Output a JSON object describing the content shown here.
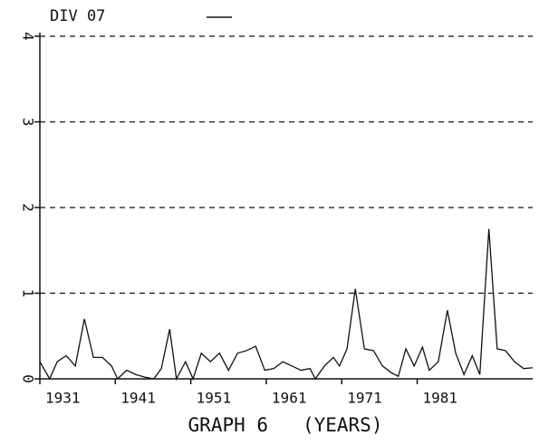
{
  "chart_data": {
    "type": "line",
    "title": "DIV 07",
    "xlabel": "GRAPH 6   (YEARS)",
    "series": [
      {
        "name": "DIV 07",
        "color": "#111111",
        "x": [
          1931.0,
          1932.3,
          1933.3,
          1934.5,
          1935.7,
          1936.9,
          1938.1,
          1939.3,
          1940.5,
          1941.3,
          1942.5,
          1943.7,
          1944.9,
          1946.1,
          1947.1,
          1948.2,
          1949.1,
          1950.3,
          1951.3,
          1952.4,
          1953.6,
          1954.8,
          1956.0,
          1957.2,
          1958.4,
          1959.6,
          1960.8,
          1962.0,
          1963.2,
          1964.4,
          1965.6,
          1966.8,
          1967.5,
          1968.7,
          1969.9,
          1970.7,
          1971.7,
          1972.8,
          1974.0,
          1975.2,
          1976.4,
          1977.6,
          1978.5,
          1979.5,
          1980.6,
          1981.7,
          1982.6,
          1983.8,
          1985.0,
          1986.1,
          1987.2,
          1988.3,
          1989.3,
          1990.5,
          1991.6,
          1992.7,
          1993.9,
          1995.1,
          1996.3
        ],
        "values": [
          0.2,
          0,
          0.2,
          0.27,
          0.15,
          0.7,
          0.25,
          0.25,
          0.15,
          0,
          0.1,
          0.05,
          0.02,
          0,
          0.12,
          0.58,
          0,
          0.2,
          0,
          0.3,
          0.2,
          0.3,
          0.1,
          0.3,
          0.33,
          0.38,
          0.1,
          0.12,
          0.2,
          0.15,
          0.1,
          0.12,
          0,
          0.15,
          0.25,
          0.15,
          0.35,
          1.05,
          0.35,
          0.33,
          0.15,
          0.07,
          0.03,
          0.35,
          0.15,
          0.37,
          0.1,
          0.2,
          0.8,
          0.3,
          0.05,
          0.27,
          0.05,
          1.75,
          0.35,
          0.33,
          0.2,
          0.12,
          0.13
        ]
      }
    ],
    "xlim": [
      1931,
      1996.3
    ],
    "xticks": [
      1931,
      1941,
      1951,
      1961,
      1971,
      1981
    ],
    "ylim": [
      0,
      4
    ],
    "yticks": [
      0,
      1,
      2,
      3,
      4
    ],
    "grid": true
  }
}
